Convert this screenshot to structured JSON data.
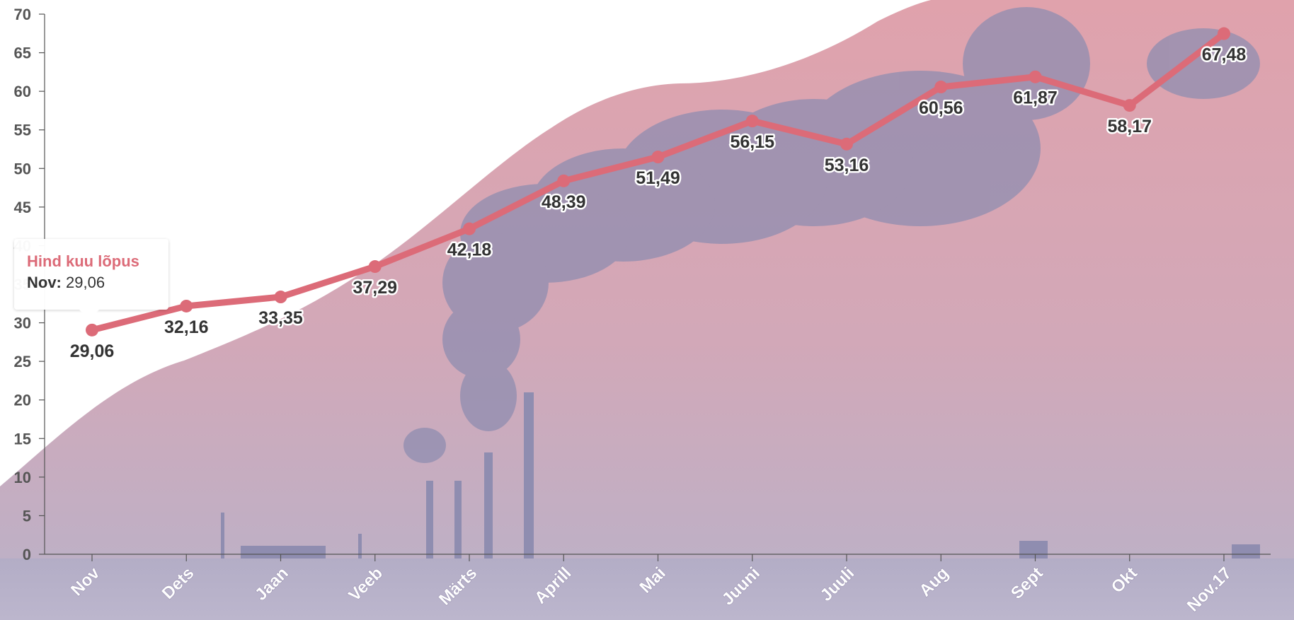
{
  "chart_data": {
    "type": "line",
    "categories": [
      "Nov",
      "Dets",
      "Jaan",
      "Veeb",
      "Märts",
      "Aprill",
      "Mai",
      "Juuni",
      "Juuli",
      "Aug",
      "Sept",
      "Okt",
      "Nov.17"
    ],
    "series": [
      {
        "values": [
          29.06,
          32.16,
          33.35,
          37.29,
          42.18,
          48.39,
          51.49,
          56.15,
          53.16,
          60.56,
          61.87,
          58.17,
          67.48
        ],
        "labels": [
          "29,06",
          "32,16",
          "33,35",
          "37,29",
          "42,18",
          "48,39",
          "51,49",
          "56,15",
          "53,16",
          "60,56",
          "61,87",
          "58,17",
          "67,48"
        ]
      }
    ],
    "ylim": [
      0,
      70
    ],
    "yticks": [
      "0",
      "5",
      "10",
      "15",
      "20",
      "25",
      "30",
      "35",
      "40",
      "45",
      "50",
      "55",
      "60",
      "65",
      "70"
    ],
    "grid": false,
    "legend": "none",
    "line_color": "#dc6b78"
  },
  "tooltip": {
    "title": "Hind kuu lõpus",
    "key": "Nov:",
    "value": "29,06"
  },
  "colors": {
    "line": "#dc6b78",
    "tooltip_title": "#dc6b78",
    "background_top": "#e0a2ac",
    "background_bottom": "#b9b2c9",
    "smoke": "#8f8db0"
  }
}
